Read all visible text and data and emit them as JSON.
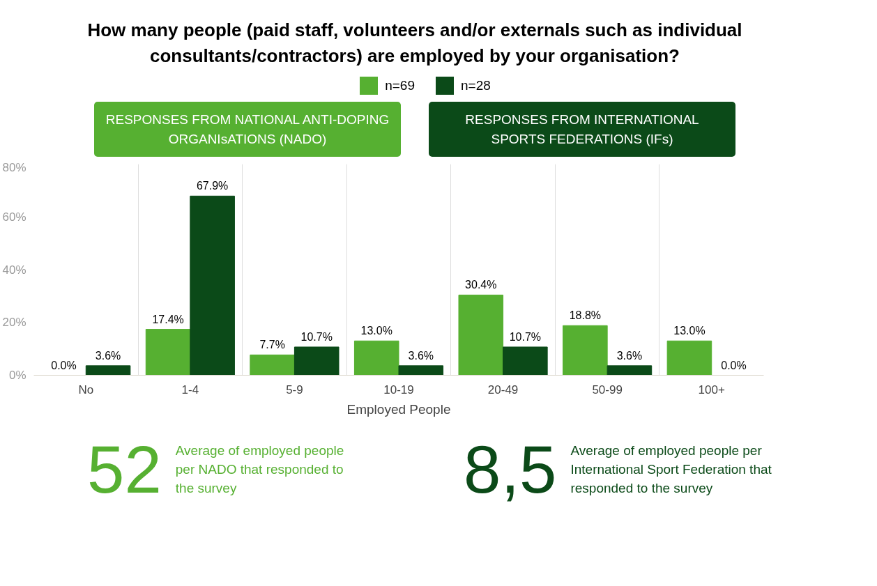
{
  "chart_data": {
    "type": "bar",
    "title": "How many people (paid staff, volunteers and/or externals such as individual consultants/contractors) are employed by your organisation?",
    "xlabel": "Employed People",
    "categories": [
      "No",
      "1-4",
      "5-9",
      "10-19",
      "20-49",
      "50-99",
      "100+"
    ],
    "series": [
      {
        "name": "n=69",
        "color": "#56b031",
        "values": [
          0.0,
          17.4,
          7.7,
          13.0,
          30.4,
          18.8,
          13.0
        ],
        "value_labels": [
          "0.0%",
          "17.4%",
          "7.7%",
          "13.0%",
          "30.4%",
          "18.8%",
          "13.0%"
        ]
      },
      {
        "name": "n=28",
        "color": "#0b4a18",
        "values": [
          3.6,
          67.9,
          10.7,
          3.6,
          10.7,
          3.6,
          0.0
        ],
        "value_labels": [
          "3.6%",
          "67.9%",
          "10.7%",
          "3.6%",
          "10.7%",
          "3.6%",
          "0.0%"
        ]
      }
    ],
    "ylim": [
      0,
      80
    ],
    "yticks": [
      {
        "value": 0,
        "label": "0%"
      },
      {
        "value": 20,
        "label": "20%"
      },
      {
        "value": 40,
        "label": "40%"
      },
      {
        "value": 60,
        "label": "60%"
      },
      {
        "value": 80,
        "label": "80%"
      }
    ],
    "grid": "x",
    "legend": "top",
    "annotations": [
      "RESPONSES FROM NATIONAL ANTI-DOPING ORGANIsATIONS (NADO)",
      "RESPONSES FROM INTERNATIONAL SPORTS FEDERATIONS (IFs)",
      "52",
      "Average of employed people per NADO that responded to the survey",
      "8,5",
      "Average of employed people per International Sport Federation that responded to the survey"
    ]
  }
}
